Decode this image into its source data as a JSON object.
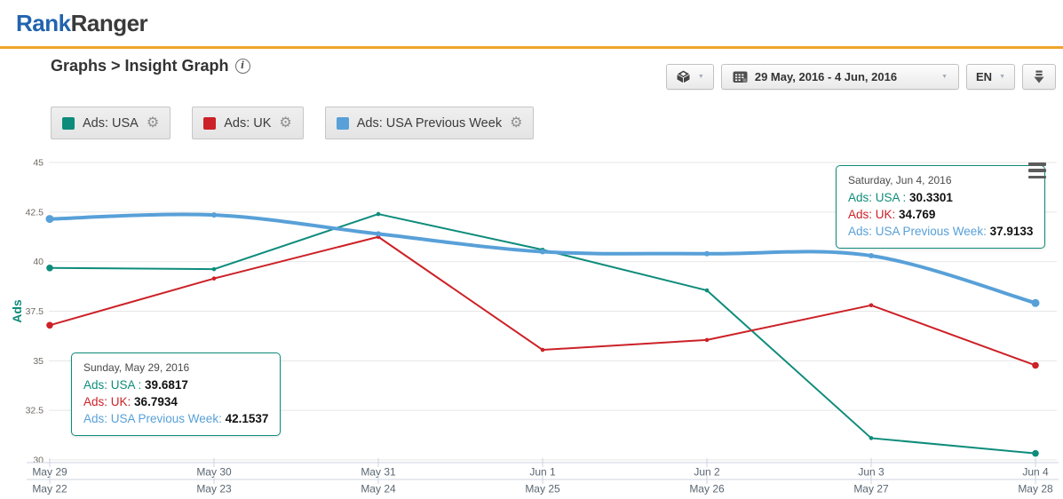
{
  "header": {
    "logo_primary": "Rank",
    "logo_secondary": "Ranger"
  },
  "page": {
    "breadcrumb": "Graphs > Insight Graph",
    "info_symbol": "i"
  },
  "controls": {
    "date_range": "29 May, 2016 - 4 Jun, 2016",
    "language": "EN",
    "caret_glyph": "▼"
  },
  "legend": {
    "gear_glyph": "⚙",
    "items": [
      {
        "label": "Ads: USA",
        "color": "#0e8c7b"
      },
      {
        "label": "Ads: UK",
        "color": "#cc2127"
      },
      {
        "label": "Ads: USA Previous Week",
        "color": "#58a0d8"
      }
    ]
  },
  "tooltips": [
    {
      "date": "Sunday, May 29, 2016",
      "rows": [
        {
          "label": "Ads: USA :",
          "value": "39.6817",
          "color": "#0e8c7b"
        },
        {
          "label": "Ads: UK:",
          "value": "36.7934",
          "color": "#cc2127"
        },
        {
          "label": "Ads: USA Previous Week:",
          "value": "42.1537",
          "color": "#58a0d8"
        }
      ]
    },
    {
      "date": "Saturday, Jun 4, 2016",
      "rows": [
        {
          "label": "Ads: USA :",
          "value": "30.3301",
          "color": "#0e8c7b"
        },
        {
          "label": "Ads: UK:",
          "value": "34.769",
          "color": "#cc2127"
        },
        {
          "label": "Ads: USA Previous Week:",
          "value": "37.9133",
          "color": "#58a0d8"
        }
      ]
    }
  ],
  "chart_data": {
    "type": "line",
    "title": "",
    "xlabel": "",
    "ylabel": "Ads",
    "ylabel_color": "#0e8c7b",
    "ylim": [
      30,
      45
    ],
    "yticks": [
      45,
      42.5,
      40,
      37.5,
      35,
      32.5,
      30
    ],
    "grid": true,
    "legend_position": "top-left-buttons",
    "categories": [
      "May 29",
      "May 30",
      "May 31",
      "Jun 1",
      "Jun 2",
      "Jun 3",
      "Jun 4"
    ],
    "categories_previous_week": [
      "May 22",
      "May 23",
      "May 24",
      "May 25",
      "May 26",
      "May 27",
      "May 28"
    ],
    "series": [
      {
        "name": "Ads: USA",
        "color": "#0e8c7b",
        "line_width": 2,
        "smooth": false,
        "values": [
          39.6817,
          39.62,
          42.4,
          40.6,
          38.55,
          31.1,
          30.3301
        ]
      },
      {
        "name": "Ads: UK",
        "color": "#cc2127",
        "line_width": 2,
        "smooth": false,
        "values": [
          36.7934,
          39.15,
          41.25,
          35.55,
          36.05,
          37.8,
          34.769
        ]
      },
      {
        "name": "Ads: USA Previous Week",
        "color": "#58a0d8",
        "line_width": 4,
        "smooth": true,
        "values": [
          42.1537,
          42.35,
          41.4,
          40.5,
          40.4,
          40.3,
          37.9133
        ]
      }
    ]
  }
}
